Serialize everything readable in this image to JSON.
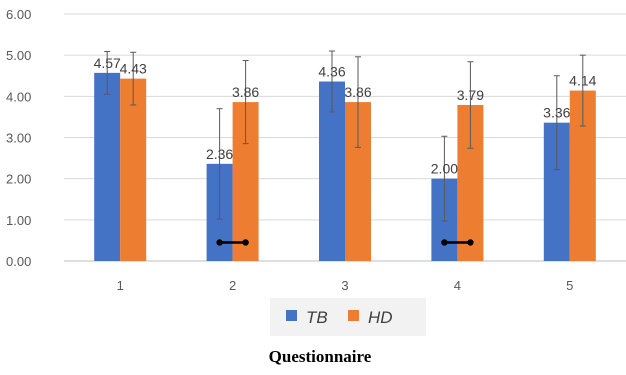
{
  "chart_data": {
    "type": "bar",
    "categories": [
      "1",
      "2",
      "3",
      "4",
      "5"
    ],
    "series": [
      {
        "name": "TB",
        "color": "#4472C4",
        "values": [
          4.57,
          2.36,
          4.36,
          2.0,
          3.36
        ],
        "value_labels": [
          "4.57",
          "2.36",
          "4.36",
          "2.00",
          "3.36"
        ],
        "error_low": [
          4.05,
          1.02,
          3.62,
          0.97,
          2.22
        ],
        "error_high": [
          5.09,
          3.7,
          5.1,
          3.03,
          4.5
        ]
      },
      {
        "name": "HD",
        "color": "#ED7D31",
        "values": [
          4.43,
          3.86,
          3.86,
          3.79,
          4.14
        ],
        "value_labels": [
          "4.43",
          "3.86",
          "3.86",
          "3.79",
          "4.14"
        ],
        "error_low": [
          3.79,
          2.85,
          2.76,
          2.74,
          3.28
        ],
        "error_high": [
          5.07,
          4.87,
          4.96,
          4.84,
          5.0
        ]
      }
    ],
    "y_ticks": [
      "0.00",
      "1.00",
      "2.00",
      "3.00",
      "4.00",
      "5.00",
      "6.00"
    ],
    "ylim": [
      0,
      6
    ],
    "grid": true,
    "legend_position": "bottom",
    "xlabel": "Questionnaire",
    "significance_markers": [
      {
        "category": "2",
        "y": 0.45
      },
      {
        "category": "4",
        "y": 0.45
      }
    ]
  }
}
